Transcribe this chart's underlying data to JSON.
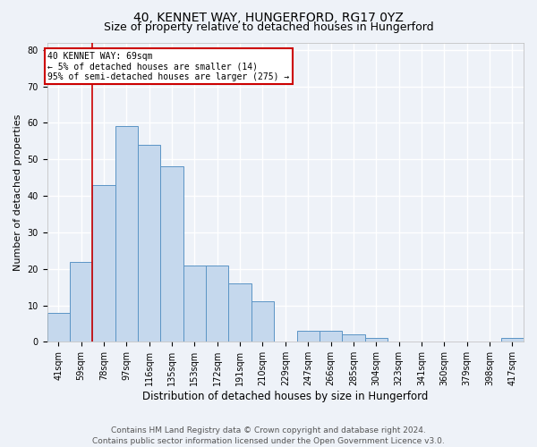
{
  "title": "40, KENNET WAY, HUNGERFORD, RG17 0YZ",
  "subtitle": "Size of property relative to detached houses in Hungerford",
  "xlabel": "Distribution of detached houses by size in Hungerford",
  "ylabel": "Number of detached properties",
  "categories": [
    "41sqm",
    "59sqm",
    "78sqm",
    "97sqm",
    "116sqm",
    "135sqm",
    "153sqm",
    "172sqm",
    "191sqm",
    "210sqm",
    "229sqm",
    "247sqm",
    "266sqm",
    "285sqm",
    "304sqm",
    "323sqm",
    "341sqm",
    "360sqm",
    "379sqm",
    "398sqm",
    "417sqm"
  ],
  "values": [
    8,
    22,
    43,
    59,
    54,
    48,
    21,
    21,
    16,
    11,
    0,
    3,
    3,
    2,
    1,
    0,
    0,
    0,
    0,
    0,
    1
  ],
  "bar_color": "#c5d8ed",
  "bar_edge_color": "#5b94c5",
  "bar_width": 1.0,
  "ylim": [
    0,
    82
  ],
  "yticks": [
    0,
    10,
    20,
    30,
    40,
    50,
    60,
    70,
    80
  ],
  "vline_x": 1.5,
  "vline_color": "#cc0000",
  "annotation_line1": "40 KENNET WAY: 69sqm",
  "annotation_line2": "← 5% of detached houses are smaller (14)",
  "annotation_line3": "95% of semi-detached houses are larger (275) →",
  "annotation_box_color": "#cc0000",
  "footer_text": "Contains HM Land Registry data © Crown copyright and database right 2024.\nContains public sector information licensed under the Open Government Licence v3.0.",
  "bg_color": "#eef2f8",
  "plot_bg_color": "#eef2f8",
  "grid_color": "#ffffff",
  "title_fontsize": 10,
  "subtitle_fontsize": 9,
  "xlabel_fontsize": 8.5,
  "ylabel_fontsize": 8,
  "tick_fontsize": 7,
  "footer_fontsize": 6.5
}
